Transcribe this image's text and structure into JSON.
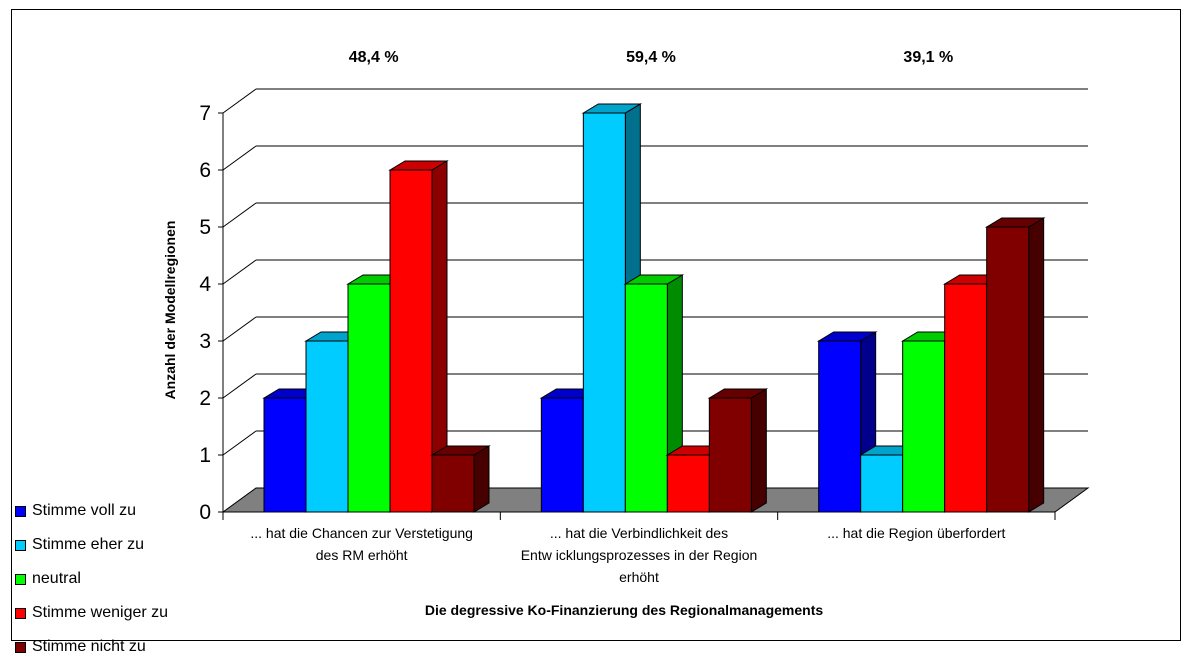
{
  "chart_data": {
    "type": "bar",
    "title": "",
    "xlabel": "Die degressive Ko-Finanzierung des Regionalmanagements",
    "ylabel": "Anzahl der Modellregionen",
    "ylim": [
      0,
      7
    ],
    "yticks": [
      "0",
      "1",
      "2",
      "3",
      "4",
      "5",
      "6",
      "7"
    ],
    "grid": true,
    "legend_position": "bottom-left",
    "categories": [
      [
        "... hat die Chancen zur Verstetigung",
        "des RM erhöht"
      ],
      [
        "... hat die Verbindlichkeit des",
        "Entw icklungsprozesses in der Region",
        "erhöht"
      ],
      [
        "... hat die Region überfordert"
      ]
    ],
    "top_labels": [
      "48,4 %",
      "59,4 %",
      "39,1 %"
    ],
    "series": [
      {
        "name": "Stimme voll zu",
        "color": "#0000ff",
        "values": [
          2,
          2,
          3
        ]
      },
      {
        "name": "Stimme eher zu",
        "color": "#00ccff",
        "values": [
          3,
          7,
          1
        ]
      },
      {
        "name": "neutral",
        "color": "#00ff00",
        "values": [
          4,
          4,
          3
        ]
      },
      {
        "name": "Stimme weniger zu",
        "color": "#ff0000",
        "values": [
          6,
          1,
          4
        ]
      },
      {
        "name": "Stimme nicht zu",
        "color": "#800000",
        "values": [
          1,
          2,
          5
        ]
      }
    ]
  }
}
